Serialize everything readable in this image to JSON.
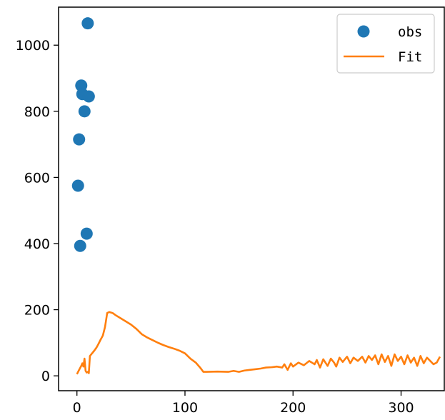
{
  "chart_data": {
    "type": "line",
    "title": "",
    "xlabel": "",
    "ylabel": "",
    "xlim": [
      -17,
      340
    ],
    "ylim": [
      -45,
      1115
    ],
    "xticks": [
      0,
      100,
      200,
      300
    ],
    "yticks": [
      0,
      200,
      400,
      600,
      800,
      1000
    ],
    "grid": false,
    "legend_position": "top-right",
    "series": [
      {
        "name": "obs",
        "kind": "scatter",
        "color": "#1f77b4",
        "points": [
          [
            1,
            575
          ],
          [
            2,
            715
          ],
          [
            3,
            393
          ],
          [
            4,
            878
          ],
          [
            5,
            852
          ],
          [
            7,
            800
          ],
          [
            9,
            430
          ],
          [
            10,
            1066
          ],
          [
            11,
            845
          ]
        ]
      },
      {
        "name": "Fit",
        "kind": "line",
        "color": "#ff7f0e",
        "points": [
          [
            0,
            5
          ],
          [
            2,
            18
          ],
          [
            4,
            30
          ],
          [
            5,
            38
          ],
          [
            6,
            28
          ],
          [
            7,
            52
          ],
          [
            8,
            15
          ],
          [
            9,
            10
          ],
          [
            10,
            12
          ],
          [
            11,
            8
          ],
          [
            12,
            60
          ],
          [
            14,
            68
          ],
          [
            16,
            76
          ],
          [
            18,
            85
          ],
          [
            20,
            97
          ],
          [
            22,
            110
          ],
          [
            24,
            122
          ],
          [
            26,
            148
          ],
          [
            28,
            190
          ],
          [
            30,
            193
          ],
          [
            33,
            190
          ],
          [
            36,
            183
          ],
          [
            40,
            175
          ],
          [
            45,
            165
          ],
          [
            50,
            155
          ],
          [
            55,
            142
          ],
          [
            60,
            126
          ],
          [
            65,
            116
          ],
          [
            70,
            108
          ],
          [
            75,
            100
          ],
          [
            80,
            93
          ],
          [
            85,
            87
          ],
          [
            90,
            82
          ],
          [
            95,
            76
          ],
          [
            100,
            68
          ],
          [
            105,
            52
          ],
          [
            110,
            40
          ],
          [
            114,
            25
          ],
          [
            117,
            12
          ],
          [
            120,
            12
          ],
          [
            130,
            13
          ],
          [
            140,
            12
          ],
          [
            145,
            15
          ],
          [
            150,
            12
          ],
          [
            155,
            16
          ],
          [
            160,
            18
          ],
          [
            165,
            20
          ],
          [
            170,
            22
          ],
          [
            175,
            25
          ],
          [
            180,
            26
          ],
          [
            185,
            28
          ],
          [
            190,
            25
          ],
          [
            192,
            35
          ],
          [
            195,
            18
          ],
          [
            198,
            38
          ],
          [
            200,
            28
          ],
          [
            205,
            40
          ],
          [
            210,
            32
          ],
          [
            215,
            45
          ],
          [
            220,
            35
          ],
          [
            222,
            48
          ],
          [
            225,
            25
          ],
          [
            228,
            50
          ],
          [
            232,
            30
          ],
          [
            235,
            52
          ],
          [
            238,
            40
          ],
          [
            240,
            28
          ],
          [
            243,
            55
          ],
          [
            246,
            42
          ],
          [
            250,
            58
          ],
          [
            253,
            38
          ],
          [
            256,
            55
          ],
          [
            260,
            45
          ],
          [
            264,
            58
          ],
          [
            267,
            40
          ],
          [
            270,
            60
          ],
          [
            273,
            48
          ],
          [
            276,
            62
          ],
          [
            279,
            35
          ],
          [
            282,
            65
          ],
          [
            285,
            42
          ],
          [
            288,
            60
          ],
          [
            291,
            30
          ],
          [
            294,
            65
          ],
          [
            297,
            45
          ],
          [
            300,
            58
          ],
          [
            303,
            35
          ],
          [
            306,
            62
          ],
          [
            309,
            40
          ],
          [
            312,
            55
          ],
          [
            315,
            30
          ],
          [
            318,
            60
          ],
          [
            321,
            38
          ],
          [
            324,
            55
          ],
          [
            327,
            45
          ],
          [
            330,
            35
          ],
          [
            333,
            40
          ],
          [
            336,
            58
          ]
        ]
      }
    ]
  }
}
